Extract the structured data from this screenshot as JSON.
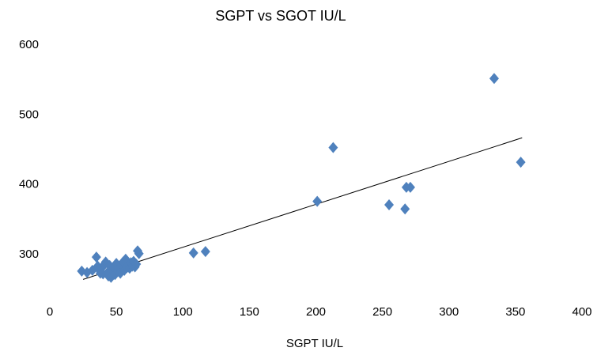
{
  "chart_data": {
    "type": "scatter",
    "title": "SGPT vs SGOT IU/L",
    "xlabel": "SGPT IU/L",
    "ylabel": "",
    "xlim": [
      0,
      400
    ],
    "ylim": [
      200,
      600
    ],
    "x_ticks": [
      0,
      50,
      100,
      150,
      200,
      250,
      300,
      350,
      400
    ],
    "y_ticks": [
      300,
      400,
      500,
      600
    ],
    "grid": false,
    "legend": "none",
    "marker": "diamond",
    "marker_color": "#4F81BD",
    "trendline": {
      "type": "linear",
      "color": "#000000",
      "x_range": [
        25,
        355
      ],
      "y_start": 263,
      "y_end": 466
    },
    "series": [
      {
        "points": [
          [
            24,
            275
          ],
          [
            28,
            273
          ],
          [
            32,
            276
          ],
          [
            35,
            295
          ],
          [
            36,
            282
          ],
          [
            37,
            277
          ],
          [
            38,
            272
          ],
          [
            39,
            280
          ],
          [
            40,
            271
          ],
          [
            41,
            284
          ],
          [
            42,
            288
          ],
          [
            43,
            272
          ],
          [
            44,
            268
          ],
          [
            45,
            283
          ],
          [
            46,
            266
          ],
          [
            47,
            276
          ],
          [
            48,
            280
          ],
          [
            49,
            270
          ],
          [
            50,
            286
          ],
          [
            51,
            275
          ],
          [
            52,
            279
          ],
          [
            53,
            272
          ],
          [
            54,
            284
          ],
          [
            55,
            288
          ],
          [
            56,
            276
          ],
          [
            57,
            292
          ],
          [
            58,
            280
          ],
          [
            59,
            284
          ],
          [
            60,
            279
          ],
          [
            61,
            287
          ],
          [
            62,
            282
          ],
          [
            63,
            289
          ],
          [
            64,
            281
          ],
          [
            65,
            285
          ],
          [
            66,
            304
          ],
          [
            67,
            300
          ],
          [
            108,
            301
          ],
          [
            117,
            303
          ],
          [
            201,
            375
          ],
          [
            213,
            452
          ],
          [
            255,
            370
          ],
          [
            267,
            364
          ],
          [
            268,
            395
          ],
          [
            271,
            395
          ],
          [
            334,
            551
          ],
          [
            354,
            431
          ]
        ]
      }
    ]
  }
}
